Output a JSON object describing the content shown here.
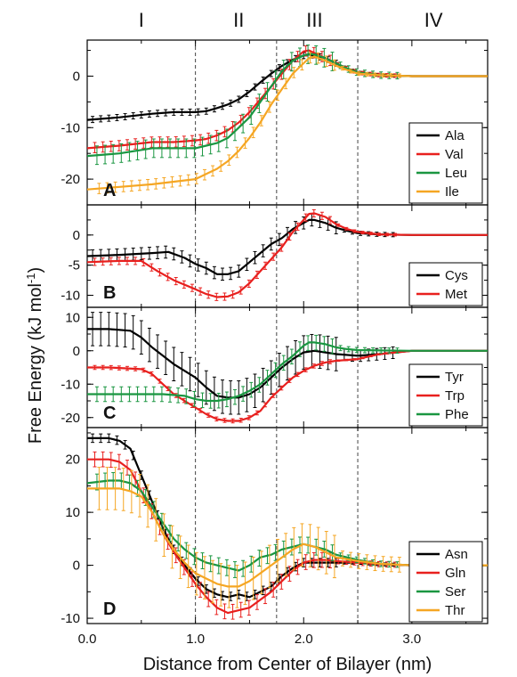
{
  "chart_data": {
    "type": "line",
    "xlabel": "Distance from Center of Bilayer (nm)",
    "ylabel": "Free Energy (kJ mol",
    "ylabel_sup": "-1",
    "ylabel_close": ")",
    "xlim": [
      0.0,
      3.7
    ],
    "x_ticks": [
      "0.0",
      "1.0",
      "2.0",
      "3.0"
    ],
    "x_tick_values": [
      0,
      1,
      2,
      3
    ],
    "regions": [
      {
        "label": "I",
        "center": 0.5
      },
      {
        "label": "II",
        "center": 1.4
      },
      {
        "label": "III",
        "center": 2.1
      },
      {
        "label": "IV",
        "center": 3.2
      }
    ],
    "dividers": [
      1.0,
      1.75,
      2.5
    ],
    "panels": [
      {
        "label": "A",
        "ylim": [
          -25,
          7
        ],
        "yticks": [
          "0",
          "-10",
          "-20"
        ],
        "ytick_values": [
          0,
          -10,
          -20
        ],
        "series": [
          {
            "name": "Ala",
            "color": "#000000",
            "x": [
              0,
              0.3,
              0.6,
              0.8,
              1.0,
              1.1,
              1.2,
              1.3,
              1.4,
              1.5,
              1.6,
              1.7,
              1.8,
              1.9,
              2.0,
              2.05,
              2.1,
              2.2,
              2.3,
              2.4,
              2.5,
              2.7,
              3.0,
              3.7
            ],
            "y": [
              -8.5,
              -8,
              -7.3,
              -7,
              -7,
              -6.8,
              -6.2,
              -5.5,
              -4.5,
              -3,
              -1.2,
              0.5,
              2,
              3.2,
              4,
              4.2,
              4,
              3.5,
              2.5,
              1.5,
              0.8,
              0.2,
              0,
              0
            ],
            "err": 0.6
          },
          {
            "name": "Val",
            "color": "#e8201e",
            "x": [
              0,
              0.3,
              0.6,
              0.8,
              1.0,
              1.1,
              1.2,
              1.3,
              1.4,
              1.5,
              1.6,
              1.7,
              1.8,
              1.9,
              2.0,
              2.05,
              2.1,
              2.2,
              2.3,
              2.4,
              2.5,
              2.7,
              3.0,
              3.7
            ],
            "y": [
              -14,
              -13.5,
              -12.8,
              -12.8,
              -12.5,
              -12.2,
              -11.5,
              -10.5,
              -9,
              -7,
              -4.5,
              -2,
              0.5,
              3,
              4.8,
              5,
              4.5,
              3.5,
              2.5,
              1.5,
              0.7,
              0.2,
              0,
              0
            ],
            "err": 1.0
          },
          {
            "name": "Leu",
            "color": "#1a9641",
            "x": [
              0,
              0.3,
              0.6,
              0.8,
              1.0,
              1.1,
              1.2,
              1.3,
              1.4,
              1.5,
              1.6,
              1.7,
              1.8,
              1.9,
              2.0,
              2.05,
              2.1,
              2.2,
              2.3,
              2.4,
              2.5,
              2.7,
              3.0,
              3.7
            ],
            "y": [
              -15.5,
              -15,
              -14,
              -14,
              -14,
              -13.5,
              -13,
              -12,
              -10,
              -8,
              -5,
              -2,
              1,
              3,
              4,
              4.3,
              4.2,
              3.5,
              2.5,
              1.5,
              0.7,
              0.2,
              0,
              0
            ],
            "err": 1.8
          },
          {
            "name": "Ile",
            "color": "#f5a623",
            "x": [
              0,
              0.3,
              0.6,
              0.8,
              1.0,
              1.1,
              1.2,
              1.3,
              1.4,
              1.5,
              1.6,
              1.7,
              1.8,
              1.9,
              2.0,
              2.05,
              2.1,
              2.2,
              2.3,
              2.4,
              2.5,
              2.7,
              3.0,
              3.7
            ],
            "y": [
              -22,
              -21.5,
              -21,
              -20.5,
              -20,
              -19,
              -18,
              -16.5,
              -14.5,
              -12,
              -9,
              -5.5,
              -2.5,
              0.5,
              2.5,
              3.5,
              3.8,
              3,
              2,
              1.2,
              0.5,
              0.2,
              0,
              0
            ],
            "err": 1.0
          }
        ]
      },
      {
        "label": "B",
        "ylim": [
          -12,
          5
        ],
        "yticks": [
          "0",
          "-5",
          "-10"
        ],
        "ytick_values": [
          0,
          -5,
          -10
        ],
        "series": [
          {
            "name": "Cys",
            "color": "#000000",
            "x": [
              0,
              0.3,
              0.6,
              0.75,
              0.9,
              1.0,
              1.1,
              1.2,
              1.3,
              1.4,
              1.5,
              1.6,
              1.7,
              1.8,
              1.9,
              2.0,
              2.05,
              2.1,
              2.2,
              2.3,
              2.4,
              2.5,
              2.7,
              3.0,
              3.7
            ],
            "y": [
              -3.5,
              -3.3,
              -3,
              -2.8,
              -3.8,
              -4.8,
              -5.5,
              -6.5,
              -6.5,
              -6,
              -4.5,
              -3,
              -1.5,
              -0.5,
              1,
              2,
              2.5,
              2.5,
              2,
              1.2,
              0.7,
              0.3,
              0.1,
              0,
              0
            ],
            "err": 1.0
          },
          {
            "name": "Met",
            "color": "#e8201e",
            "x": [
              0,
              0.3,
              0.5,
              0.65,
              0.8,
              1.0,
              1.1,
              1.2,
              1.3,
              1.4,
              1.5,
              1.6,
              1.7,
              1.8,
              1.9,
              2.0,
              2.05,
              2.1,
              2.2,
              2.3,
              2.4,
              2.5,
              2.7,
              3.0,
              3.7
            ],
            "y": [
              -4.5,
              -4.3,
              -4.3,
              -6,
              -7.5,
              -9,
              -9.8,
              -10.3,
              -10.2,
              -9.5,
              -8,
              -6,
              -4,
              -2,
              0.5,
              2.5,
              3.5,
              3.6,
              3,
              1.8,
              1,
              0.5,
              0.1,
              0,
              0
            ],
            "err": 0.6
          }
        ]
      },
      {
        "label": "C",
        "ylim": [
          -23,
          13
        ],
        "yticks": [
          "10",
          "0",
          "-10",
          "-20"
        ],
        "ytick_values": [
          10,
          0,
          -10,
          -20
        ],
        "series": [
          {
            "name": "Tyr",
            "color": "#000000",
            "x": [
              0,
              0.2,
              0.4,
              0.5,
              0.6,
              0.8,
              1.0,
              1.1,
              1.2,
              1.3,
              1.4,
              1.5,
              1.6,
              1.7,
              1.8,
              1.9,
              2.0,
              2.1,
              2.2,
              2.3,
              2.5,
              2.7,
              3.0,
              3.7
            ],
            "y": [
              6.5,
              6.5,
              6,
              4,
              1,
              -4,
              -8,
              -11,
              -13.5,
              -14,
              -14,
              -13,
              -11,
              -8,
              -5,
              -2.5,
              -0.5,
              0,
              -0.5,
              -1,
              -1.5,
              -1,
              0,
              0
            ],
            "err": 5.0
          },
          {
            "name": "Trp",
            "color": "#e8201e",
            "x": [
              0,
              0.2,
              0.5,
              0.6,
              0.7,
              0.8,
              1.0,
              1.1,
              1.2,
              1.3,
              1.4,
              1.5,
              1.6,
              1.7,
              1.8,
              1.9,
              2.0,
              2.1,
              2.2,
              2.3,
              2.5,
              2.7,
              3.0,
              3.7
            ],
            "y": [
              -5,
              -5,
              -5.5,
              -7,
              -10,
              -13,
              -17,
              -19,
              -20.5,
              -21,
              -21,
              -20,
              -18,
              -14,
              -11,
              -8,
              -6,
              -4.5,
              -3.5,
              -3,
              -2.5,
              -1,
              0,
              0
            ],
            "err": 0.6
          },
          {
            "name": "Phe",
            "color": "#1a9641",
            "x": [
              0,
              0.3,
              0.5,
              0.7,
              0.9,
              1.0,
              1.1,
              1.2,
              1.3,
              1.4,
              1.5,
              1.6,
              1.7,
              1.8,
              1.9,
              2.0,
              2.05,
              2.1,
              2.2,
              2.3,
              2.4,
              2.5,
              2.7,
              3.0,
              3.7
            ],
            "y": [
              -13,
              -13,
              -13,
              -13,
              -13.5,
              -14.5,
              -15,
              -15,
              -14.5,
              -13.5,
              -12,
              -10,
              -7,
              -4,
              -1.5,
              1.5,
              2.5,
              2.5,
              2,
              1,
              0.5,
              0.2,
              0.1,
              0,
              0
            ],
            "err": 2.2
          }
        ]
      },
      {
        "label": "D",
        "ylim": [
          -11,
          26
        ],
        "yticks": [
          "20",
          "10",
          "0",
          "-10"
        ],
        "ytick_values": [
          20,
          10,
          0,
          -10
        ],
        "series": [
          {
            "name": "Asn",
            "color": "#000000",
            "x": [
              0,
              0.2,
              0.3,
              0.4,
              0.5,
              0.6,
              0.7,
              0.8,
              0.9,
              1.0,
              1.1,
              1.2,
              1.3,
              1.4,
              1.5,
              1.6,
              1.7,
              1.8,
              1.9,
              2.0,
              2.1,
              2.2,
              2.3,
              2.5,
              2.7,
              3.0,
              3.7
            ],
            "y": [
              24,
              24,
              23.5,
              22,
              17,
              12,
              7,
              3,
              0,
              -2.5,
              -4.5,
              -5.5,
              -6,
              -5.5,
              -6,
              -5,
              -4,
              -2,
              -0.5,
              0.5,
              0.5,
              0.5,
              0.5,
              0.5,
              0.2,
              0,
              0
            ],
            "err": 0.8
          },
          {
            "name": "Gln",
            "color": "#e8201e",
            "x": [
              0,
              0.2,
              0.3,
              0.4,
              0.5,
              0.6,
              0.7,
              0.8,
              0.9,
              1.0,
              1.1,
              1.2,
              1.3,
              1.4,
              1.5,
              1.6,
              1.7,
              1.8,
              1.9,
              2.0,
              2.1,
              2.2,
              2.3,
              2.5,
              2.7,
              3.0,
              3.7
            ],
            "y": [
              20,
              20,
              19.5,
              18,
              14,
              10,
              6,
              2.5,
              -0.5,
              -3.5,
              -6,
              -8,
              -9,
              -8.5,
              -8,
              -6.5,
              -5,
              -3,
              -1,
              0.5,
              1,
              1,
              0.8,
              0.5,
              0.2,
              0,
              0
            ],
            "err": 1.4
          },
          {
            "name": "Ser",
            "color": "#1a9641",
            "x": [
              0,
              0.2,
              0.3,
              0.4,
              0.5,
              0.6,
              0.7,
              0.8,
              0.9,
              1.0,
              1.1,
              1.2,
              1.3,
              1.4,
              1.5,
              1.6,
              1.7,
              1.8,
              1.9,
              2.0,
              2.1,
              2.2,
              2.3,
              2.5,
              2.7,
              3.0,
              3.7
            ],
            "y": [
              15.5,
              16,
              16,
              15.5,
              14,
              11,
              8,
              5,
              3,
              1.5,
              0.5,
              0,
              -0.5,
              -1,
              0,
              1.5,
              2,
              3,
              3.5,
              4,
              3.5,
              3,
              2,
              1,
              0.3,
              0,
              0
            ],
            "err": 1.5
          },
          {
            "name": "Thr",
            "color": "#f5a623",
            "x": [
              0,
              0.2,
              0.3,
              0.4,
              0.5,
              0.6,
              0.7,
              0.8,
              0.9,
              1.0,
              1.1,
              1.2,
              1.3,
              1.4,
              1.5,
              1.6,
              1.7,
              1.8,
              1.9,
              2.0,
              2.1,
              2.2,
              2.3,
              2.5,
              2.7,
              3.0,
              3.7
            ],
            "y": [
              14.5,
              14.5,
              14.5,
              14,
              13,
              10,
              6,
              3,
              0.5,
              -1.5,
              -2.5,
              -3.5,
              -4,
              -4,
              -3,
              -1.5,
              0,
              1.5,
              3,
              4,
              3.5,
              2.5,
              1.5,
              0.8,
              0.3,
              0,
              0
            ],
            "err": 4.0
          }
        ]
      }
    ]
  }
}
